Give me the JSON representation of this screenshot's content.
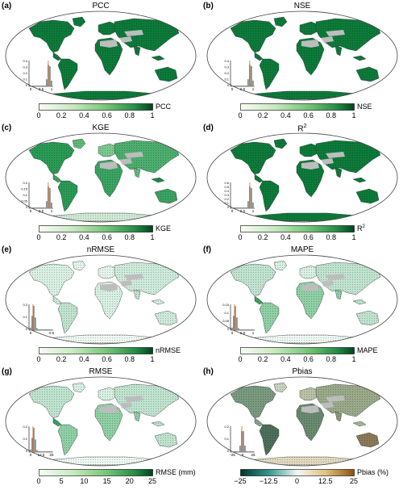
{
  "panels": [
    {
      "label": "(a)",
      "title": "PCC",
      "unit": "PCC",
      "ticks": [
        "0",
        "0.2",
        "0.4",
        "0.6",
        "0.8",
        "1"
      ],
      "hist_ticks_y": [
        "0.4",
        "0.3",
        "0.2",
        "0.1",
        "0"
      ],
      "hist_ticks_x": [
        "0",
        "0.5",
        "1"
      ],
      "colorbar": "sequential-green",
      "map_shading": "dark"
    },
    {
      "label": "(b)",
      "title": "NSE",
      "unit": "NSE",
      "ticks": [
        "0",
        "0.2",
        "0.4",
        "0.6",
        "0.8",
        "1"
      ],
      "hist_ticks_y": [
        "0.4",
        "0.3",
        "0.2",
        "0.1",
        "0"
      ],
      "hist_ticks_x": [
        "0",
        "0.5",
        "1"
      ],
      "colorbar": "sequential-green",
      "map_shading": "dark"
    },
    {
      "label": "(c)",
      "title": "KGE",
      "unit": "KGE",
      "ticks": [
        "0",
        "0.2",
        "0.4",
        "0.6",
        "0.8",
        "1"
      ],
      "hist_ticks_y": [
        "0.2",
        "0.15",
        "0.1",
        "0.05",
        "0"
      ],
      "hist_ticks_x": [
        "0",
        "0.5",
        "1"
      ],
      "colorbar": "sequential-green",
      "map_shading": "mixed"
    },
    {
      "label": "(d)",
      "title": "R",
      "title_sup": "2",
      "unit": "R",
      "unit_sup": "2",
      "ticks": [
        "0",
        "0.2",
        "0.4",
        "0.6",
        "0.8",
        "1"
      ],
      "hist_ticks_y": [
        "0.6",
        "0.5",
        "0.4",
        "0.3",
        "0.2",
        "0.1",
        "0"
      ],
      "hist_ticks_x": [
        "0",
        "0.5",
        "1"
      ],
      "colorbar": "sequential-green",
      "map_shading": "dark"
    },
    {
      "label": "(e)",
      "title": "nRMSE",
      "unit": "nRMSE",
      "ticks": [
        "0",
        "0.2",
        "0.4",
        "0.6",
        "0.8",
        "1"
      ],
      "hist_ticks_y": [
        "0.2",
        "0.1",
        "0"
      ],
      "hist_ticks_x": [
        "0",
        "0.5"
      ],
      "colorbar": "sequential-green",
      "map_shading": "light"
    },
    {
      "label": "(f)",
      "title": "MAPE",
      "unit": "MAPE",
      "ticks": [
        "0",
        "0.2",
        "0.4",
        "0.6",
        "0.8",
        "1"
      ],
      "hist_ticks_y": [
        "0.15",
        "0.1",
        "0.05",
        "0"
      ],
      "hist_ticks_x": [
        "0",
        "0.5",
        "1"
      ],
      "colorbar": "sequential-green",
      "map_shading": "light-mixed"
    },
    {
      "label": "(g)",
      "title": "RMSE",
      "unit": "RMSE (mm)",
      "ticks": [
        "0",
        "5",
        "10",
        "15",
        "20",
        "25"
      ],
      "hist_ticks_y": [
        "0.2",
        "0.1",
        "0"
      ],
      "hist_ticks_x": [
        "0",
        "12.5",
        "25"
      ],
      "colorbar": "sequential-green",
      "map_shading": "light-mixed"
    },
    {
      "label": "(h)",
      "title": "Pbias",
      "unit": "Pbias (%)",
      "ticks": [
        "−25",
        "−12.5",
        "0",
        "12.5",
        "25"
      ],
      "hist_ticks_y": [
        "0.2",
        "0.1",
        "0"
      ],
      "hist_ticks_x": [
        "−25",
        "0",
        "25"
      ],
      "colorbar": "diverging-teal-orange",
      "map_shading": "diverging"
    }
  ]
}
